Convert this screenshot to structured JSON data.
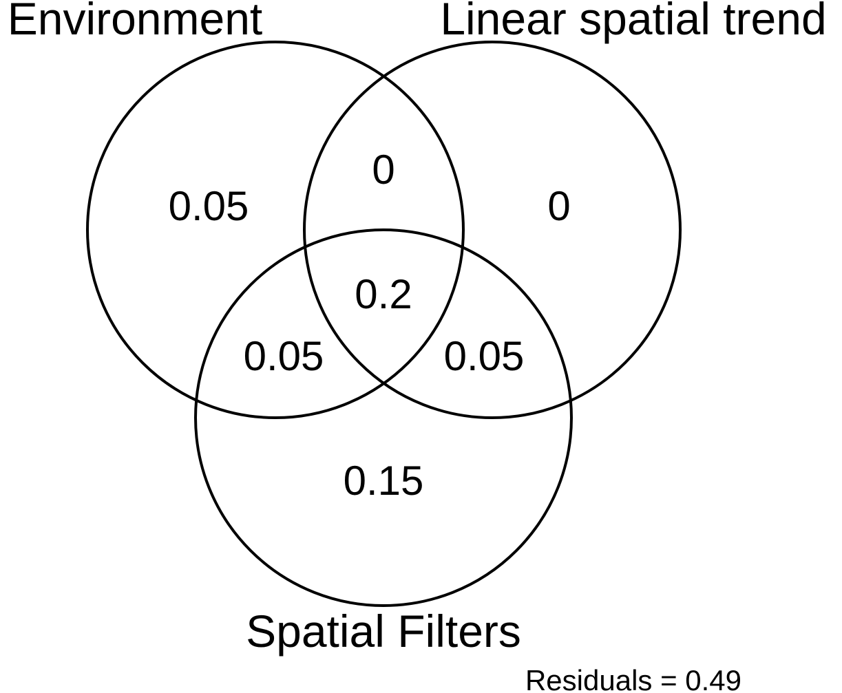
{
  "sets": {
    "environment": "Environment",
    "linear_spatial_trend": "Linear spatial trend",
    "spatial_filters": "Spatial Filters"
  },
  "regions": {
    "environment_only": "0.05",
    "linear_trend_only": "0",
    "spatial_filters_only": "0.15",
    "environment_and_linear_trend": "0",
    "environment_and_spatial_filters": "0.05",
    "linear_trend_and_spatial_filters": "0.05",
    "all_three": "0.2"
  },
  "residuals": "Residuals = 0.49"
}
